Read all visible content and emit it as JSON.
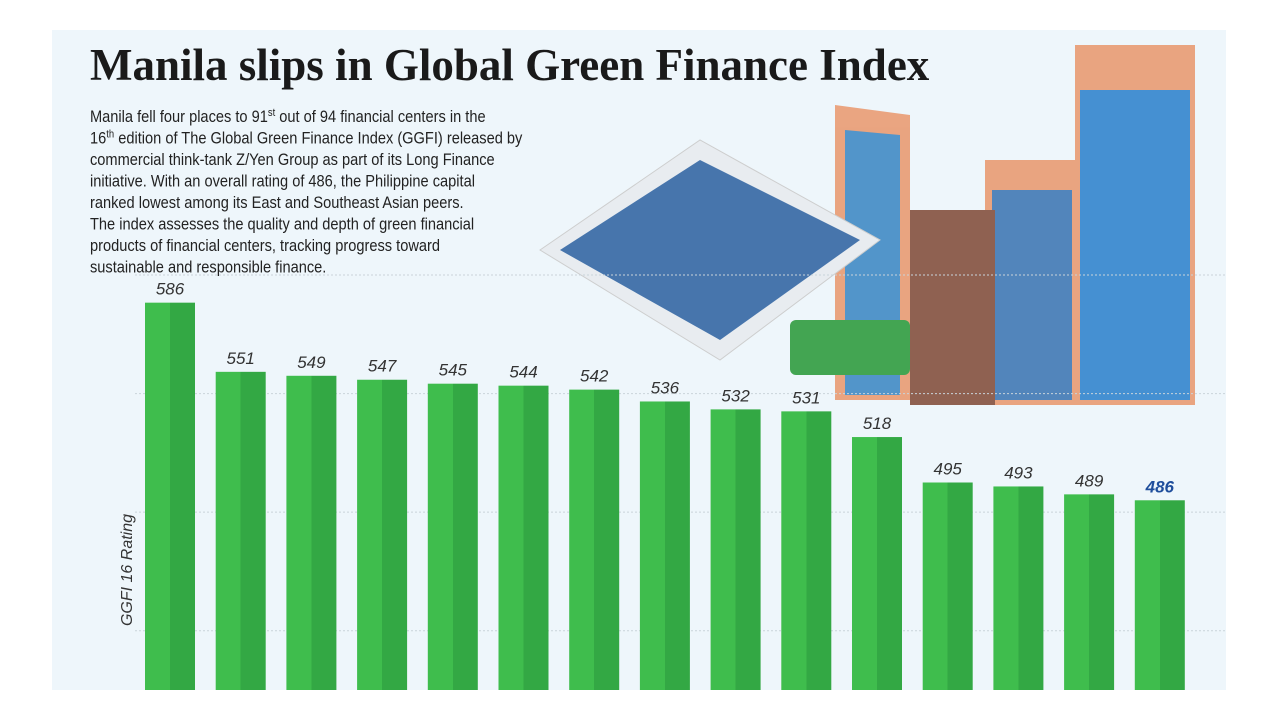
{
  "chart_data": {
    "type": "bar",
    "title": "Manila slips in Global Green Finance Index",
    "description": [
      [
        "Manila fell four places to 91",
        "st",
        " out of 94 financial centers in the"
      ],
      [
        "16",
        "th",
        " edition of The Global Green Finance Index (GGFI) released by"
      ],
      [
        "commercial think-tank Z/Yen Group as part of its Long Finance"
      ],
      [
        "initiative. With an overall rating of 486, the Philippine capital"
      ],
      [
        "ranked lowest among its East and Southeast Asian peers."
      ],
      [
        "The index assesses the quality and depth of green financial"
      ],
      [
        "products of financial centers, tracking progress toward"
      ],
      [
        "sustainable and responsible finance."
      ]
    ],
    "y_label": "GGFI 16 Rating",
    "categories": [
      null,
      null,
      null,
      null,
      null,
      null,
      null,
      null,
      null,
      null,
      null,
      null,
      null,
      null,
      null
    ],
    "values": [
      586,
      551,
      549,
      547,
      545,
      544,
      542,
      536,
      532,
      531,
      518,
      495,
      493,
      489,
      486
    ],
    "color": "#3cb54a",
    "value_label_colors": [
      "#333333",
      "#333333",
      "#333333",
      "#333333",
      "#333333",
      "#333333",
      "#333333",
      "#333333",
      "#333333",
      "#333333",
      "#333333",
      "#333333",
      "#333333",
      "#333333",
      "#1f4e9c"
    ],
    "ylim": [
      390,
      600
    ],
    "yticks": [
      420,
      480,
      540,
      600
    ],
    "grid": true
  }
}
